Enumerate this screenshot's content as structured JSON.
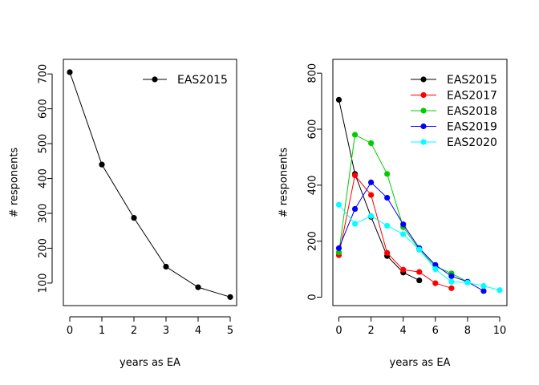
{
  "chart_data": [
    {
      "type": "line",
      "xlabel": "years as EA",
      "ylabel": "# responents",
      "xlim": [
        0,
        5
      ],
      "ylim": [
        60,
        705
      ],
      "xticks": [
        0,
        1,
        2,
        3,
        4,
        5
      ],
      "yticks": [
        100,
        200,
        300,
        400,
        500,
        600,
        700
      ],
      "legend_position": "top-right",
      "grid": false,
      "series": [
        {
          "name": "EAS2015",
          "color": "#000000",
          "x": [
            0,
            1,
            2,
            3,
            4,
            5
          ],
          "y": [
            705,
            440,
            287,
            147,
            88,
            60
          ]
        }
      ]
    },
    {
      "type": "line",
      "xlabel": "years as EA",
      "ylabel": "# responents",
      "xlim": [
        0,
        10
      ],
      "ylim": [
        0,
        800
      ],
      "xticks": [
        0,
        2,
        4,
        6,
        8,
        10
      ],
      "yticks": [
        0,
        200,
        400,
        600,
        800
      ],
      "legend_position": "top-right",
      "grid": false,
      "series": [
        {
          "name": "EAS2015",
          "color": "#000000",
          "x": [
            0,
            1,
            2,
            3,
            4,
            5
          ],
          "y": [
            705,
            440,
            287,
            147,
            88,
            60
          ]
        },
        {
          "name": "EAS2017",
          "color": "#ff0000",
          "x": [
            0,
            1,
            2,
            3,
            4,
            5,
            6,
            7
          ],
          "y": [
            150,
            435,
            365,
            158,
            98,
            90,
            50,
            32
          ]
        },
        {
          "name": "EAS2018",
          "color": "#00cd00",
          "x": [
            0,
            1,
            2,
            3,
            4,
            5,
            6,
            7,
            8
          ],
          "y": [
            160,
            580,
            550,
            440,
            250,
            170,
            110,
            85,
            55
          ]
        },
        {
          "name": "EAS2019",
          "color": "#0000ff",
          "x": [
            0,
            1,
            2,
            3,
            4,
            5,
            6,
            7,
            8,
            9
          ],
          "y": [
            175,
            315,
            410,
            355,
            260,
            175,
            115,
            75,
            55,
            22
          ]
        },
        {
          "name": "EAS2020",
          "color": "#00ffff",
          "x": [
            0,
            1,
            2,
            3,
            4,
            5,
            6,
            7,
            8,
            9,
            10
          ],
          "y": [
            330,
            262,
            290,
            255,
            225,
            170,
            100,
            55,
            52,
            40,
            25
          ]
        }
      ]
    }
  ]
}
